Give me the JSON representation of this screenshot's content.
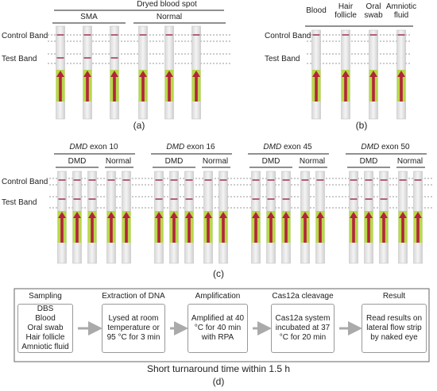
{
  "panel_a": {
    "title": "Dryed blood spot",
    "groups": [
      "SMA",
      "Normal"
    ],
    "bands": [
      "Control Band",
      "Test Band"
    ],
    "label": "(a)"
  },
  "panel_b": {
    "samples": [
      "Blood",
      "Hair follicle",
      "Oral swab",
      "Amniotic fluid"
    ],
    "bands": [
      "Control Band",
      "Test Band"
    ],
    "label": "(b)"
  },
  "panel_c": {
    "targets": [
      {
        "gene": "DMD",
        "exon": "exon 10",
        "groups": [
          "DMD",
          "Normal"
        ]
      },
      {
        "gene": "DMD",
        "exon": "exon 16",
        "groups": [
          "DMD",
          "Normal"
        ]
      },
      {
        "gene": "DMD",
        "exon": "exon 45",
        "groups": [
          "DMD",
          "Normal"
        ]
      },
      {
        "gene": "DMD",
        "exon": "exon 50",
        "groups": [
          "DMD",
          "Normal"
        ]
      }
    ],
    "bands": [
      "Control Band",
      "Test Band"
    ],
    "label": "(c)"
  },
  "panel_d": {
    "steps": [
      {
        "title": "Sampling",
        "lines": [
          "DBS",
          "Blood",
          "Oral swab",
          "Hair follicle",
          "Amniotic fluid"
        ]
      },
      {
        "title": "Extraction of DNA",
        "text": "Lysed at room temperature or 95 °C for 3 min"
      },
      {
        "title": "Amplification",
        "text": "Amplified at 40 °C for 40 min with RPA"
      },
      {
        "title": "Cas12a cleavage",
        "text": "Cas12a system incubated at 37 °C for 20 min"
      },
      {
        "title": "Result",
        "text": "Read results on lateral flow strip by naked eye"
      }
    ],
    "footer": "Short turnaround time within 1.5 h",
    "label": "(d)"
  }
}
